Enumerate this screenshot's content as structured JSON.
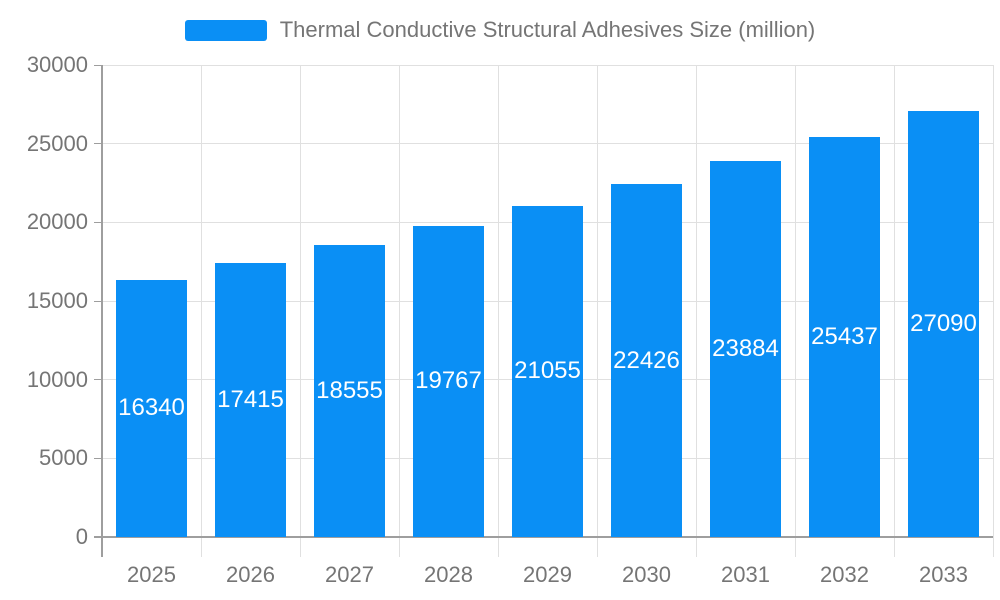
{
  "chart_data": {
    "type": "bar",
    "title": "Thermal Conductive Structural Adhesives Size (million)",
    "categories": [
      "2025",
      "2026",
      "2027",
      "2028",
      "2029",
      "2030",
      "2031",
      "2032",
      "2033"
    ],
    "series": [
      {
        "name": "Thermal Conductive Structural Adhesives Size (million)",
        "values": [
          16340,
          17415,
          18555,
          19767,
          21055,
          22426,
          23884,
          25437,
          27090
        ]
      }
    ],
    "xlabel": "",
    "ylabel": "",
    "ylim": [
      0,
      30000
    ],
    "ytick_step": 5000,
    "ytick_labels": [
      "0",
      "5000",
      "10000",
      "15000",
      "20000",
      "25000",
      "30000"
    ],
    "grid": "on",
    "legend_position": "top-center",
    "bar_value_labels": "centered-inside-white",
    "colors": {
      "bar": "#0a8ff5",
      "bar_label_text": "#ffffff",
      "axis_text": "#757575",
      "legend_text": "#757575",
      "axis_line": "#9e9e9e",
      "gridline": "#e0e0e0",
      "background": "#ffffff"
    }
  }
}
